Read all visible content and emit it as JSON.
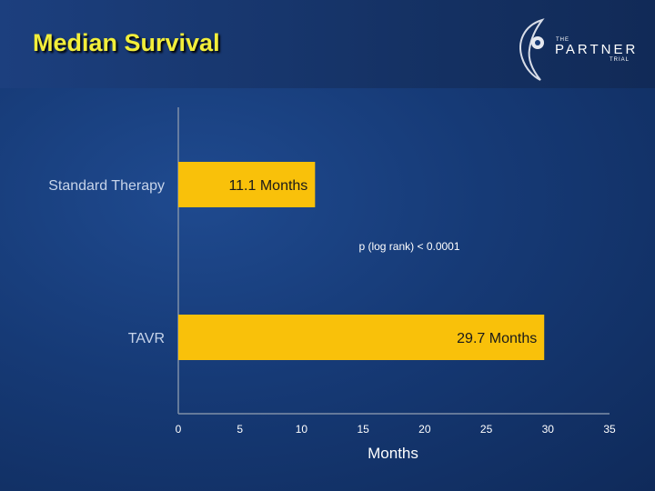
{
  "slide": {
    "title": "Median Survival",
    "logo": {
      "small_top": "THE",
      "name": "PARTNER",
      "small_bottom": "TRIAL"
    }
  },
  "colors": {
    "bar": "#f9c10a",
    "axis": "#7f8fa8",
    "title": "#f2ee3a"
  },
  "chart_data": {
    "type": "bar",
    "orientation": "horizontal",
    "categories": [
      "Standard Therapy",
      "TAVR"
    ],
    "values": [
      11.1,
      29.7
    ],
    "data_labels": [
      "11.1 Months",
      "29.7 Months"
    ],
    "annotation": "p (log rank) < 0.0001",
    "xlabel": "Months",
    "xlim": [
      0,
      35
    ],
    "xticks": [
      0,
      5,
      10,
      15,
      20,
      25,
      30,
      35
    ],
    "grid": false
  }
}
